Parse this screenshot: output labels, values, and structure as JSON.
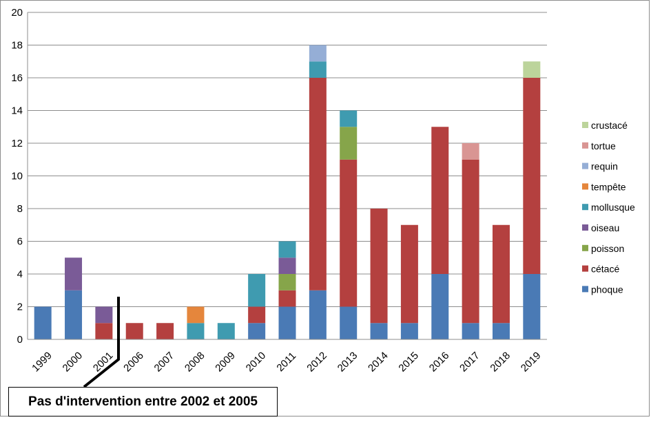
{
  "chart_data": {
    "type": "bar",
    "stacked": true,
    "title": "",
    "xlabel": "",
    "ylabel": "",
    "ylim": [
      0,
      20
    ],
    "y_ticks": [
      0,
      2,
      4,
      6,
      8,
      10,
      12,
      14,
      16,
      18,
      20
    ],
    "grid": true,
    "legend_position": "right",
    "categories": [
      "1999",
      "2000",
      "2001",
      "2006",
      "2007",
      "2008",
      "2009",
      "2010",
      "2011",
      "2012",
      "2013",
      "2014",
      "2015",
      "2016",
      "2017",
      "2018",
      "2019"
    ],
    "series": [
      {
        "name": "phoque",
        "color": "#4a7ab5",
        "values": [
          2,
          3,
          0,
          0,
          0,
          0,
          0,
          1,
          2,
          3,
          2,
          1,
          1,
          4,
          1,
          1,
          4
        ]
      },
      {
        "name": "cétacé",
        "color": "#b4403f",
        "values": [
          0,
          0,
          1,
          1,
          1,
          0,
          0,
          1,
          1,
          13,
          9,
          7,
          6,
          9,
          10,
          6,
          12
        ]
      },
      {
        "name": "poisson",
        "color": "#86a54a",
        "values": [
          0,
          0,
          0,
          0,
          0,
          0,
          0,
          0,
          1,
          0,
          2,
          0,
          0,
          0,
          0,
          0,
          0
        ]
      },
      {
        "name": "oiseau",
        "color": "#7a5b97",
        "values": [
          0,
          2,
          1,
          0,
          0,
          0,
          0,
          0,
          1,
          0,
          0,
          0,
          0,
          0,
          0,
          0,
          0
        ]
      },
      {
        "name": "mollusque",
        "color": "#3f9bb0",
        "values": [
          0,
          0,
          0,
          0,
          0,
          1,
          1,
          2,
          1,
          1,
          1,
          0,
          0,
          0,
          0,
          0,
          0
        ]
      },
      {
        "name": "tempête",
        "color": "#e5863c",
        "values": [
          0,
          0,
          0,
          0,
          0,
          1,
          0,
          0,
          0,
          0,
          0,
          0,
          0,
          0,
          0,
          0,
          0
        ]
      },
      {
        "name": "requin",
        "color": "#95aed6",
        "values": [
          0,
          0,
          0,
          0,
          0,
          0,
          0,
          0,
          0,
          1,
          0,
          0,
          0,
          0,
          0,
          0,
          0
        ]
      },
      {
        "name": "tortue",
        "color": "#d99593",
        "values": [
          0,
          0,
          0,
          0,
          0,
          0,
          0,
          0,
          0,
          0,
          0,
          0,
          0,
          0,
          1,
          0,
          0
        ]
      },
      {
        "name": "crustacé",
        "color": "#bcd49b",
        "values": [
          0,
          0,
          0,
          0,
          0,
          0,
          0,
          0,
          0,
          0,
          0,
          0,
          0,
          0,
          0,
          0,
          1
        ]
      }
    ],
    "annotation": "Pas d'intervention entre 2002 et 2005"
  }
}
